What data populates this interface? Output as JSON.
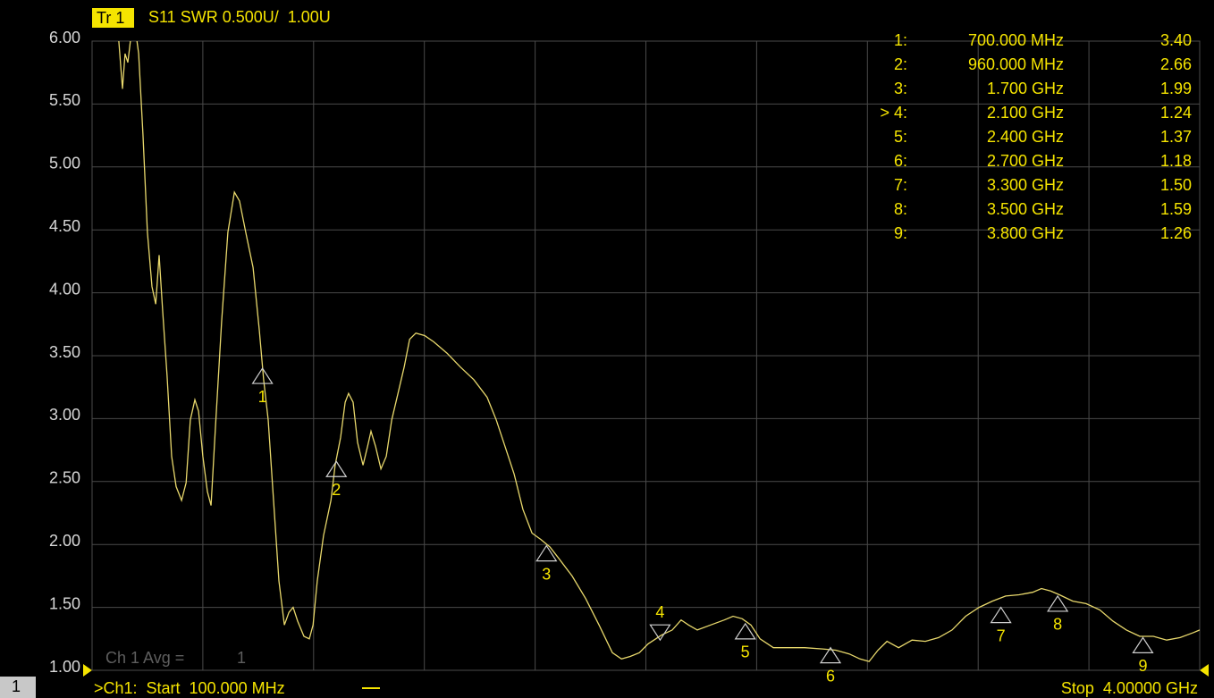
{
  "chart_data": {
    "type": "line",
    "trace_label": "Tr 1",
    "title": "S11 SWR 0.500U/  1.00U",
    "avg_label": "Ch 1 Avg =",
    "avg_value": "1",
    "channel_label": "1",
    "start_label": ">Ch1:  Start  100.000 MHz",
    "stop_label": "Stop  4.00000 GHz",
    "xlim": [
      0.1,
      4.0
    ],
    "xticks": [
      0.1,
      0.49,
      0.88,
      1.27,
      1.66,
      2.05,
      2.44,
      2.83,
      3.22,
      3.61,
      4.0
    ],
    "ylim": [
      1,
      6
    ],
    "yticks": [
      {
        "value": 1,
        "label": "1.00"
      },
      {
        "value": 1.5,
        "label": "1.50"
      },
      {
        "value": 2,
        "label": "2.00"
      },
      {
        "value": 2.5,
        "label": "2.50"
      },
      {
        "value": 3,
        "label": "3.00"
      },
      {
        "value": 3.5,
        "label": "3.50"
      },
      {
        "value": 4,
        "label": "4.00"
      },
      {
        "value": 4.5,
        "label": "4.50"
      },
      {
        "value": 5,
        "label": "5.00"
      },
      {
        "value": 5.5,
        "label": "5.50"
      },
      {
        "value": 6,
        "label": "6.00"
      }
    ],
    "grid": true,
    "series": [
      {
        "name": "S11",
        "color": "#e8d86c",
        "x": [
          0.194,
          0.207,
          0.216,
          0.226,
          0.239,
          0.254,
          0.264,
          0.279,
          0.295,
          0.311,
          0.324,
          0.336,
          0.349,
          0.364,
          0.38,
          0.396,
          0.415,
          0.431,
          0.446,
          0.462,
          0.475,
          0.49,
          0.506,
          0.519,
          0.534,
          0.556,
          0.578,
          0.601,
          0.619,
          0.641,
          0.667,
          0.689,
          0.704,
          0.72,
          0.739,
          0.758,
          0.777,
          0.793,
          0.808,
          0.824,
          0.846,
          0.865,
          0.878,
          0.893,
          0.915,
          0.941,
          0.956,
          0.975,
          0.991,
          1.003,
          1.019,
          1.035,
          1.054,
          1.07,
          1.082,
          1.098,
          1.117,
          1.136,
          1.155,
          1.177,
          1.199,
          1.218,
          1.24,
          1.271,
          1.303,
          1.35,
          1.397,
          1.444,
          1.491,
          1.523,
          1.554,
          1.586,
          1.617,
          1.649,
          1.68,
          1.712,
          1.743,
          1.79,
          1.838,
          1.885,
          1.932,
          1.964,
          1.995,
          2.027,
          2.058,
          2.105,
          2.143,
          2.174,
          2.2,
          2.231,
          2.278,
          2.326,
          2.357,
          2.389,
          2.42,
          2.452,
          2.499,
          2.546,
          2.609,
          2.672,
          2.719,
          2.766,
          2.804,
          2.836,
          2.867,
          2.899,
          2.94,
          2.987,
          3.034,
          3.081,
          3.128,
          3.176,
          3.223,
          3.27,
          3.317,
          3.364,
          3.412,
          3.443,
          3.475,
          3.506,
          3.553,
          3.6,
          3.648,
          3.695,
          3.742,
          3.789,
          3.837,
          3.884,
          3.931,
          3.978,
          4.0
        ],
        "values": [
          6.0,
          5.62,
          5.9,
          5.83,
          6.08,
          6.07,
          5.9,
          5.26,
          4.48,
          4.05,
          3.91,
          4.3,
          3.84,
          3.34,
          2.7,
          2.46,
          2.35,
          2.49,
          2.99,
          3.15,
          3.06,
          2.7,
          2.42,
          2.31,
          2.92,
          3.77,
          4.48,
          4.8,
          4.73,
          4.48,
          4.2,
          3.7,
          3.31,
          2.99,
          2.35,
          1.71,
          1.36,
          1.46,
          1.5,
          1.39,
          1.27,
          1.25,
          1.36,
          1.71,
          2.07,
          2.35,
          2.63,
          2.85,
          3.13,
          3.2,
          3.13,
          2.81,
          2.63,
          2.78,
          2.9,
          2.78,
          2.6,
          2.7,
          2.99,
          3.2,
          3.41,
          3.63,
          3.68,
          3.66,
          3.61,
          3.52,
          3.41,
          3.31,
          3.17,
          2.99,
          2.78,
          2.56,
          2.28,
          2.09,
          2.04,
          1.98,
          1.89,
          1.75,
          1.57,
          1.36,
          1.14,
          1.09,
          1.11,
          1.14,
          1.21,
          1.28,
          1.32,
          1.4,
          1.36,
          1.32,
          1.36,
          1.4,
          1.43,
          1.41,
          1.36,
          1.25,
          1.18,
          1.18,
          1.18,
          1.17,
          1.16,
          1.13,
          1.09,
          1.07,
          1.16,
          1.23,
          1.18,
          1.24,
          1.23,
          1.26,
          1.32,
          1.43,
          1.5,
          1.55,
          1.59,
          1.6,
          1.62,
          1.65,
          1.63,
          1.6,
          1.55,
          1.53,
          1.48,
          1.39,
          1.32,
          1.27,
          1.27,
          1.24,
          1.26,
          1.3,
          1.32
        ]
      }
    ],
    "markers": [
      {
        "name": "1",
        "table_label": "1:",
        "x": 0.7,
        "x_label": "700.000 MHz",
        "value": 3.4,
        "value_label": "3.40"
      },
      {
        "name": "2",
        "table_label": "2:",
        "x": 0.96,
        "x_label": "960.000 MHz",
        "value": 2.66
      },
      {
        "name": "3",
        "table_label": "3:",
        "x": 1.7,
        "x_label": "1.700 GHz",
        "value": 1.99
      },
      {
        "name": "4",
        "table_label": "> 4:",
        "x": 2.1,
        "x_label": "2.100 GHz",
        "value": 1.24,
        "active": true
      },
      {
        "name": "5",
        "table_label": "5:",
        "x": 2.4,
        "x_label": "2.400 GHz",
        "value": 1.37
      },
      {
        "name": "6",
        "table_label": "6:",
        "x": 2.7,
        "x_label": "2.700 GHz",
        "value": 1.18
      },
      {
        "name": "7",
        "table_label": "7:",
        "x": 3.3,
        "x_label": "3.300 GHz",
        "value": 1.5,
        "value_label": "1.50"
      },
      {
        "name": "8",
        "table_label": "8:",
        "x": 3.5,
        "x_label": "3.500 GHz",
        "value": 1.59
      },
      {
        "name": "9",
        "table_label": "9:",
        "x": 3.8,
        "x_label": "3.800 GHz",
        "value": 1.26
      }
    ]
  }
}
